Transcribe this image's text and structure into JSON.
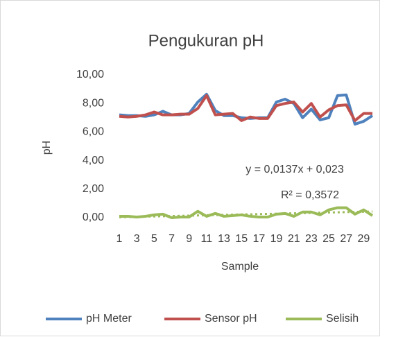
{
  "chart_data": {
    "type": "line",
    "title": "Pengukuran pH",
    "x_label": "Sample",
    "y_label": "pH",
    "categories": [
      "1",
      null,
      "3",
      null,
      "5",
      null,
      "7",
      null,
      "9",
      null,
      "11",
      null,
      "13",
      null,
      "15",
      null,
      "17",
      null,
      "19",
      null,
      "21",
      null,
      "23",
      null,
      "25",
      null,
      "27",
      null,
      "29",
      null
    ],
    "series": [
      {
        "name": "pH Meter",
        "color": "#4f81bd",
        "values": [
          7.2,
          7.15,
          7.15,
          7.1,
          7.2,
          7.45,
          7.2,
          7.2,
          7.3,
          8.1,
          8.65,
          7.5,
          7.15,
          7.15,
          7.0,
          6.95,
          7.0,
          7.0,
          8.1,
          8.3,
          8.0,
          7.0,
          7.6,
          6.85,
          7.0,
          8.55,
          8.6,
          6.55,
          6.75,
          7.15
        ]
      },
      {
        "name": "Sensor pH",
        "color": "#c0504d",
        "values": [
          7.1,
          7.05,
          7.1,
          7.2,
          7.4,
          7.2,
          7.2,
          7.25,
          7.25,
          7.65,
          8.55,
          7.2,
          7.25,
          7.3,
          6.8,
          7.05,
          6.95,
          6.95,
          7.85,
          8.0,
          8.1,
          7.4,
          8.0,
          7.05,
          7.55,
          7.85,
          7.9,
          6.8,
          7.3,
          7.3
        ]
      },
      {
        "name": "Selisih",
        "color": "#9bbb59",
        "values": [
          0.1,
          0.1,
          0.05,
          0.1,
          0.2,
          0.25,
          0.0,
          0.05,
          0.05,
          0.45,
          0.1,
          0.3,
          0.1,
          0.15,
          0.2,
          0.1,
          0.05,
          0.05,
          0.25,
          0.3,
          0.1,
          0.4,
          0.4,
          0.2,
          0.55,
          0.7,
          0.7,
          0.25,
          0.55,
          0.15
        ]
      }
    ],
    "trendline": {
      "series": 2,
      "slope": 0.0137,
      "intercept": 0.023,
      "equation": "y = 0,0137x + 0,023",
      "r2": "R² = 0,3572"
    },
    "ylim": [
      0,
      10
    ],
    "yticks": [
      {
        "value": 0,
        "label": "0,00"
      },
      {
        "value": 2,
        "label": "2,00"
      },
      {
        "value": 4,
        "label": "4,00"
      },
      {
        "value": 6,
        "label": "6,00"
      },
      {
        "value": 8,
        "label": "8,00"
      },
      {
        "value": 10,
        "label": "10,00"
      }
    ],
    "grid": false,
    "legend": "bottom"
  }
}
